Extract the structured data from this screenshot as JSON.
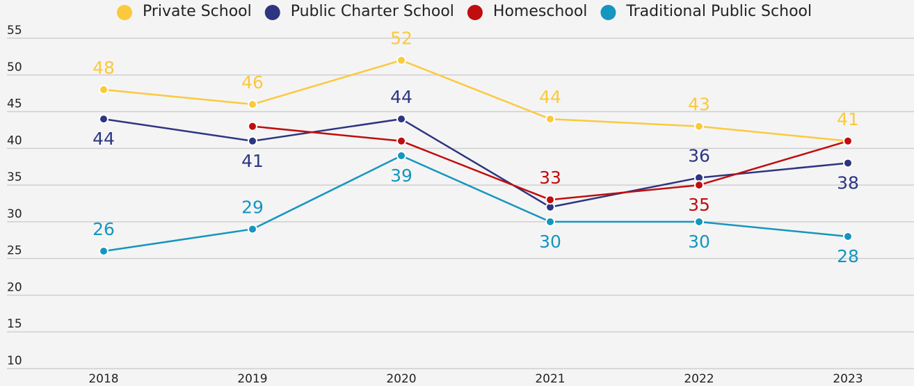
{
  "chart_data": {
    "type": "line",
    "categories": [
      "2018",
      "2019",
      "2020",
      "2021",
      "2022",
      "2023"
    ],
    "series": [
      {
        "name": "Private School",
        "color": "#fbc93d",
        "values": [
          48,
          46,
          52,
          44,
          43,
          41
        ],
        "value_labels": [
          "48",
          "46",
          "52",
          "44",
          "43",
          "41"
        ]
      },
      {
        "name": "Public Charter School",
        "color": "#2d3580",
        "values": [
          44,
          41,
          44,
          32,
          36,
          38
        ],
        "value_labels": [
          "44",
          "41",
          "44",
          null,
          "36",
          "38"
        ]
      },
      {
        "name": "Homeschool",
        "color": "#c00d0d",
        "values": [
          null,
          43,
          41,
          33,
          35,
          41
        ],
        "value_labels": [
          null,
          null,
          null,
          "33",
          "35",
          null
        ]
      },
      {
        "name": "Traditional Public School",
        "color": "#1496bf",
        "values": [
          26,
          29,
          39,
          30,
          30,
          28
        ],
        "value_labels": [
          "26",
          "29",
          "39",
          "30",
          "30",
          "28"
        ]
      }
    ],
    "ylim": [
      10,
      55
    ],
    "yticks": [
      10,
      15,
      20,
      25,
      30,
      35,
      40,
      45,
      50,
      55
    ],
    "grid": true,
    "legend": "top"
  }
}
